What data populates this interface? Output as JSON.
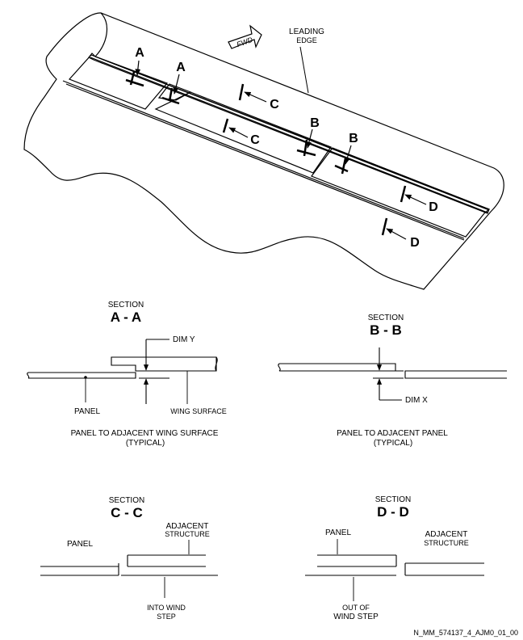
{
  "figure_id": "N_MM_574137_4_AJM0_01_00",
  "wing_view": {
    "fwd_label": "FWD",
    "leading_edge_label_line1": "LEADING",
    "leading_edge_label_line2": "EDGE",
    "callouts": {
      "a1": "A",
      "a2": "A",
      "b1": "B",
      "b2": "B",
      "c1": "C",
      "c2": "C",
      "d1": "D",
      "d2": "D"
    }
  },
  "section_aa": {
    "section_word": "SECTION",
    "title": "A - A",
    "dim_label": "DIM Y",
    "panel_label": "PANEL",
    "wing_surface_label": "WING SURFACE",
    "caption_line1": "PANEL TO ADJACENT WING SURFACE",
    "caption_line2": "(TYPICAL)"
  },
  "section_bb": {
    "section_word": "SECTION",
    "title": "B - B",
    "dim_label": "DIM X",
    "caption_line1": "PANEL TO ADJACENT PANEL",
    "caption_line2": "(TYPICAL)"
  },
  "section_cc": {
    "section_word": "SECTION",
    "title": "C - C",
    "panel_label": "PANEL",
    "adjacent_line1": "ADJACENT",
    "adjacent_line2": "STRUCTURE",
    "step_line1": "INTO WIND",
    "step_line2": "STEP"
  },
  "section_dd": {
    "section_word": "SECTION",
    "title": "D - D",
    "panel_label": "PANEL",
    "adjacent_line1": "ADJACENT",
    "adjacent_line2": "STRUCTURE",
    "step_line1": "OUT OF",
    "step_line2": "WIND STEP"
  }
}
